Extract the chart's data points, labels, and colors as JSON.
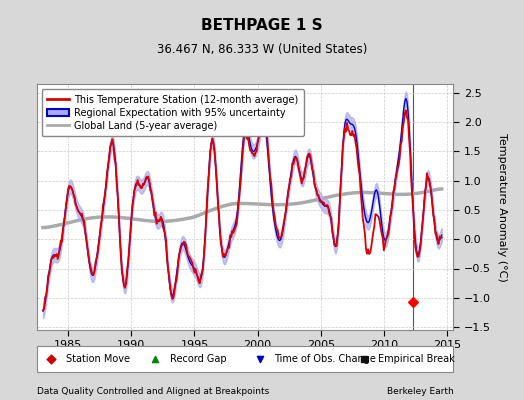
{
  "title": "BETHPAGE 1 S",
  "subtitle": "36.467 N, 86.333 W (United States)",
  "ylabel": "Temperature Anomaly (°C)",
  "xlabel_left": "Data Quality Controlled and Aligned at Breakpoints",
  "xlabel_right": "Berkeley Earth",
  "year_start": 1982.5,
  "year_end": 2015.5,
  "ylim": [
    -1.55,
    2.65
  ],
  "yticks": [
    -1.5,
    -1.0,
    -0.5,
    0.0,
    0.5,
    1.0,
    1.5,
    2.0,
    2.5
  ],
  "xticks": [
    1985,
    1990,
    1995,
    2000,
    2005,
    2010,
    2015
  ],
  "station_move_x": 2012.3,
  "station_move_y": -1.08,
  "vertical_line_x": 2012.3,
  "bg_color": "#d8d8d8",
  "plot_bg_color": "#ffffff",
  "line_station_color": "#dd0000",
  "line_regional_color": "#0000cc",
  "line_regional_fill": "#aaaaee",
  "line_global_color": "#aaaaaa",
  "legend_items": [
    "This Temperature Station (12-month average)",
    "Regional Expectation with 95% uncertainty",
    "Global Land (5-year average)"
  ]
}
